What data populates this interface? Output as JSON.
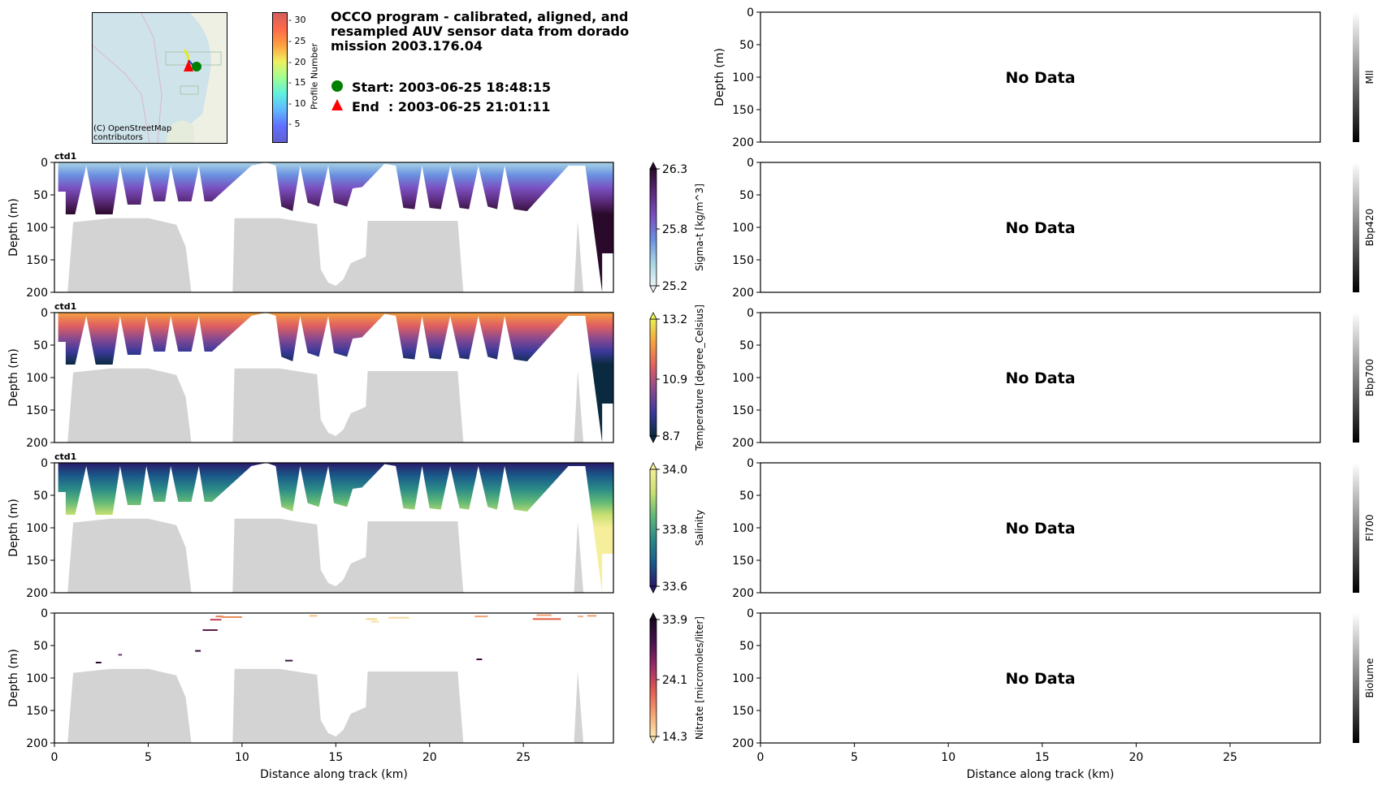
{
  "header": {
    "title": "OCCO program - calibrated, aligned, and resampled AUV sensor data from dorado mission 2003.176.04",
    "start_label": "Start: 2003-06-25 18:48:15",
    "end_label": "End  : 2003-06-25 21:01:11",
    "start_marker_color": "#008000",
    "end_marker_color": "#ff0000",
    "map_attribution": "(C) OpenStreetMap contributors",
    "profile_colorbar": {
      "label": "Profile Number",
      "ticks": [
        "30",
        "25",
        "20",
        "15",
        "10",
        "5"
      ]
    }
  },
  "chart_data": [
    {
      "type": "heatmap",
      "panel_label": "ctd1",
      "ylabel": "Depth (m)",
      "yticks": [
        "0",
        "50",
        "100",
        "150",
        "200"
      ],
      "ylim": [
        200,
        0
      ],
      "xlim": [
        0,
        29.8
      ],
      "colorbar": {
        "label": "Sigma-t [kg/m^3]",
        "ticks": [
          "26.3",
          "25.8",
          "25.2"
        ],
        "range": [
          25.2,
          26.3
        ],
        "colors": [
          "#e8f4f4",
          "#a8d4e6",
          "#6a8fe0",
          "#7a4fbf",
          "#5a2a7a",
          "#2a0a2a"
        ]
      }
    },
    {
      "type": "heatmap",
      "panel_label": "ctd1",
      "ylabel": "Depth (m)",
      "yticks": [
        "0",
        "50",
        "100",
        "150",
        "200"
      ],
      "ylim": [
        200,
        0
      ],
      "xlim": [
        0,
        29.8
      ],
      "colorbar": {
        "label": "Temperature [degree_Celsius]",
        "ticks": [
          "13.2",
          "10.9",
          "8.7"
        ],
        "range": [
          8.7,
          13.2
        ],
        "colors": [
          "#e8f050",
          "#f5a040",
          "#e06060",
          "#8a4a90",
          "#3a3a9a",
          "#0a2a40"
        ]
      }
    },
    {
      "type": "heatmap",
      "panel_label": "ctd1",
      "ylabel": "Depth (m)",
      "yticks": [
        "0",
        "50",
        "100",
        "150",
        "200"
      ],
      "ylim": [
        200,
        0
      ],
      "xlim": [
        0,
        29.8
      ],
      "colorbar": {
        "label": "Salinity",
        "ticks": [
          "34.0",
          "33.8",
          "33.6"
        ],
        "range": [
          33.6,
          34.0
        ],
        "colors": [
          "#f5ee9a",
          "#c8e070",
          "#60b878",
          "#2a8a88",
          "#1a5a8a",
          "#2a1a6a"
        ]
      }
    },
    {
      "type": "heatmap",
      "panel_label": "",
      "ylabel": "Depth (m)",
      "yticks": [
        "0",
        "50",
        "100",
        "150",
        "200"
      ],
      "ylim": [
        200,
        0
      ],
      "xlim": [
        0,
        29.8
      ],
      "xlabel": "Distance along track (km)",
      "xticks": [
        "0",
        "5",
        "10",
        "15",
        "20",
        "25"
      ],
      "colorbar": {
        "label": "Nitrate [micromoles/liter]",
        "ticks": [
          "33.9",
          "24.1",
          "14.3"
        ],
        "range": [
          14.3,
          33.9
        ],
        "colors": [
          "#fce8b0",
          "#f5a070",
          "#e05a50",
          "#9a2a6a",
          "#4a1050",
          "#1a0a20"
        ]
      }
    },
    {
      "type": "heatmap",
      "panel_label": "",
      "ylabel": "Depth (m)",
      "yticks": [
        "0",
        "50",
        "100",
        "150",
        "200"
      ],
      "ylim": [
        200,
        0
      ],
      "no_data_text": "No Data",
      "colorbar": {
        "label": "Mll"
      }
    },
    {
      "type": "heatmap",
      "panel_label": "",
      "ylabel": "",
      "yticks": [
        "0",
        "50",
        "100",
        "150",
        "200"
      ],
      "ylim": [
        200,
        0
      ],
      "no_data_text": "No Data",
      "colorbar": {
        "label": "Bbp420"
      }
    },
    {
      "type": "heatmap",
      "panel_label": "",
      "ylabel": "",
      "yticks": [
        "0",
        "50",
        "100",
        "150",
        "200"
      ],
      "ylim": [
        200,
        0
      ],
      "no_data_text": "No Data",
      "colorbar": {
        "label": "Bbp700"
      }
    },
    {
      "type": "heatmap",
      "panel_label": "",
      "ylabel": "",
      "yticks": [
        "0",
        "50",
        "100",
        "150",
        "200"
      ],
      "ylim": [
        200,
        0
      ],
      "no_data_text": "No Data",
      "colorbar": {
        "label": "Fl700"
      }
    },
    {
      "type": "heatmap",
      "panel_label": "",
      "ylabel": "",
      "yticks": [
        "0",
        "50",
        "100",
        "150",
        "200"
      ],
      "ylim": [
        200,
        0
      ],
      "xlim": [
        0,
        29.8
      ],
      "xlabel": "Distance along track (km)",
      "xticks": [
        "0",
        "5",
        "10",
        "15",
        "20",
        "25"
      ],
      "no_data_text": "No Data",
      "colorbar": {
        "label": "Biolume"
      }
    }
  ],
  "bathymetry": {
    "color": "#d3d3d3",
    "profile_km": [
      0,
      0.7,
      1.0,
      3.0,
      5.0,
      6.5,
      7.0,
      7.3,
      9.5,
      9.6,
      12.0,
      14.0,
      14.2,
      14.6,
      15.0,
      15.4,
      15.8,
      16.6,
      16.7,
      21.5,
      21.8,
      27.7,
      27.9,
      28.2
    ],
    "seafloor_depth_m": [
      200,
      200,
      92,
      86,
      86,
      96,
      130,
      200,
      200,
      86,
      86,
      95,
      165,
      185,
      190,
      180,
      155,
      145,
      90,
      90,
      200,
      200,
      90,
      200
    ]
  }
}
